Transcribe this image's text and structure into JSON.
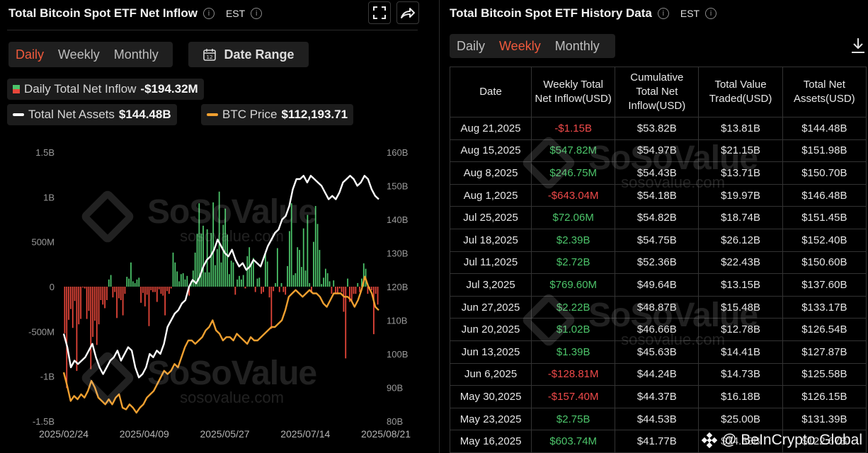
{
  "left": {
    "title": "Total Bitcoin Spot ETF Net Inflow",
    "tz": "EST",
    "tabs": [
      "Daily",
      "Weekly",
      "Monthly"
    ],
    "active_tab": "Daily",
    "date_range_label": "Date Range",
    "legend": {
      "inflow_label": "Daily Total Net Inflow",
      "inflow_value": "-$194.32M",
      "assets_label": "Total Net Assets",
      "assets_value": "$144.48B",
      "btc_label": "BTC Price",
      "btc_value": "$112,193.71"
    }
  },
  "right": {
    "title": "Total Bitcoin Spot ETF History Data",
    "tz": "EST",
    "tabs": [
      "Daily",
      "Weekly",
      "Monthly"
    ],
    "active_tab": "Weekly",
    "columns": [
      "Date",
      "Weekly Total Net Inflow(USD)",
      "Cumulative Total Net Inflow(USD)",
      "Total Value Traded(USD)",
      "Total Net Assets(USD)"
    ],
    "rows": [
      [
        "Aug 21,2025",
        "-$1.15B",
        "$53.82B",
        "$13.81B",
        "$144.48B"
      ],
      [
        "Aug 15,2025",
        "$547.82M",
        "$54.97B",
        "$21.15B",
        "$151.98B"
      ],
      [
        "Aug 8,2025",
        "$246.75M",
        "$54.43B",
        "$13.71B",
        "$150.70B"
      ],
      [
        "Aug 1,2025",
        "-$643.04M",
        "$54.18B",
        "$19.97B",
        "$146.48B"
      ],
      [
        "Jul 25,2025",
        "$72.06M",
        "$54.82B",
        "$18.74B",
        "$151.45B"
      ],
      [
        "Jul 18,2025",
        "$2.39B",
        "$54.75B",
        "$26.12B",
        "$152.40B"
      ],
      [
        "Jul 11,2025",
        "$2.72B",
        "$52.36B",
        "$22.43B",
        "$150.60B"
      ],
      [
        "Jul 3,2025",
        "$769.60M",
        "$49.64B",
        "$13.15B",
        "$137.60B"
      ],
      [
        "Jun 27,2025",
        "$2.22B",
        "$48.87B",
        "$15.48B",
        "$133.17B"
      ],
      [
        "Jun 20,2025",
        "$1.02B",
        "$46.66B",
        "$12.78B",
        "$126.54B"
      ],
      [
        "Jun 13,2025",
        "$1.39B",
        "$45.63B",
        "$14.41B",
        "$127.87B"
      ],
      [
        "Jun 6,2025",
        "-$128.81M",
        "$44.24B",
        "$14.73B",
        "$125.58B"
      ],
      [
        "May 30,2025",
        "-$157.40M",
        "$44.37B",
        "$16.18B",
        "$126.15B"
      ],
      [
        "May 23,2025",
        "$2.75B",
        "$44.53B",
        "$25.00B",
        "$131.39B"
      ],
      [
        "May 16,2025",
        "$603.74M",
        "$41.77B",
        "$14.38B",
        "$122.67B"
      ]
    ]
  },
  "watermark": {
    "brand": "SoSoValue",
    "site": "sosovalue.com",
    "credit": "@ BeInCrypto Global"
  },
  "colors": {
    "accent": "#ef5a3c",
    "inflow_pos": "#4cc46a",
    "inflow_neg": "#e8473a",
    "assets_line": "#ffffff",
    "btc_line": "#f0a030"
  },
  "chart_data": {
    "type": "bar",
    "x_ticks": [
      "2025/02/24",
      "2025/04/09",
      "2025/05/27",
      "2025/07/14",
      "2025/08/21"
    ],
    "y_left_ticks": [
      "1.5B",
      "1B",
      "500M",
      "0",
      "-500M",
      "-1B",
      "-1.5B"
    ],
    "y_left_range": [
      -1500,
      1500
    ],
    "y_left_unit": "M USD",
    "y_right_ticks": [
      "160B",
      "150B",
      "140B",
      "130B",
      "120B",
      "110B",
      "100B",
      "90B",
      "80B"
    ],
    "y_right_range": [
      80,
      160
    ],
    "y_right_unit": "B USD",
    "series": [
      {
        "name": "Daily Total Net Inflow",
        "kind": "bar",
        "values": [
          -520,
          -1130,
          -370,
          -250,
          -460,
          -160,
          -940,
          -420,
          -360,
          -10,
          -20,
          -360,
          -270,
          -920,
          -560,
          -380,
          -650,
          -420,
          -150,
          -200,
          -240,
          -150,
          80,
          130,
          -120,
          -60,
          -350,
          -130,
          -150,
          -320,
          -80,
          110,
          90,
          270,
          60,
          40,
          80,
          100,
          -180,
          -70,
          -220,
          -90,
          -440,
          -40,
          -60,
          -60,
          -170,
          -30,
          -80,
          -100,
          -320,
          -50,
          -80,
          -20,
          380,
          270,
          170,
          60,
          140,
          150,
          80,
          120,
          -100,
          60,
          180,
          380,
          590,
          930,
          590,
          680,
          160,
          640,
          160,
          600,
          940,
          240,
          420,
          1060,
          270,
          690,
          870,
          580,
          140,
          290,
          270,
          -90,
          80,
          120,
          80,
          130,
          -20,
          340,
          440,
          260,
          320,
          -60,
          90,
          100,
          -80,
          -60,
          390,
          280,
          -120,
          -470,
          -50,
          40,
          430,
          -60,
          40,
          -60,
          -90,
          230,
          620,
          930,
          130,
          150,
          440,
          410,
          220,
          650,
          180,
          800,
          40,
          -70,
          500,
          900,
          700,
          410,
          30,
          100,
          200,
          150,
          60,
          -80,
          70,
          -70,
          -70,
          -20,
          -60,
          -280,
          -800,
          90,
          -170,
          -160,
          -80,
          -80,
          40,
          -60,
          90,
          260,
          200,
          -80,
          -20,
          -40,
          -530,
          -80,
          -200
        ]
      },
      {
        "name": "Total Net Assets",
        "kind": "line",
        "values": [
          106,
          102,
          96,
          98,
          97,
          98,
          99,
          101,
          103,
          99,
          96,
          94,
          96,
          98,
          99,
          101,
          98,
          100,
          102,
          101,
          96,
          93,
          94,
          96,
          100,
          99,
          101,
          100,
          103,
          108,
          110,
          112,
          113,
          115,
          116,
          120,
          122,
          121,
          123,
          126,
          128,
          129,
          131,
          134,
          132,
          130,
          129,
          131,
          128,
          126,
          127,
          125,
          126,
          128,
          127,
          126,
          129,
          132,
          134,
          136,
          137,
          140,
          141,
          144,
          149,
          152,
          152,
          153,
          151,
          153,
          152,
          151,
          150,
          148,
          146,
          147,
          146,
          148,
          151,
          152,
          153,
          152,
          150,
          151,
          153,
          152,
          149,
          147,
          146
        ]
      },
      {
        "name": "BTC Price",
        "kind": "line",
        "values": [
          94.5,
          90.5,
          86,
          87.5,
          86.5,
          88,
          87,
          89,
          92,
          90,
          87,
          86,
          85,
          86.5,
          85,
          87,
          88,
          84,
          83.5,
          85,
          84,
          82.5,
          84,
          85,
          87,
          88,
          89,
          91,
          93,
          95,
          94,
          95,
          97,
          96,
          99,
          102,
          104,
          104,
          103,
          104,
          105,
          107,
          108,
          110,
          107,
          106,
          104,
          105,
          105,
          104,
          106,
          105,
          104,
          103,
          105,
          104,
          104,
          105,
          106,
          107,
          108,
          108,
          109,
          110,
          113,
          117,
          118,
          119,
          118,
          117,
          118,
          119,
          118,
          118,
          117,
          115,
          114,
          116,
          118,
          118,
          118,
          117,
          117,
          116,
          114,
          116,
          119,
          123,
          120,
          118,
          114,
          113
        ]
      }
    ]
  }
}
